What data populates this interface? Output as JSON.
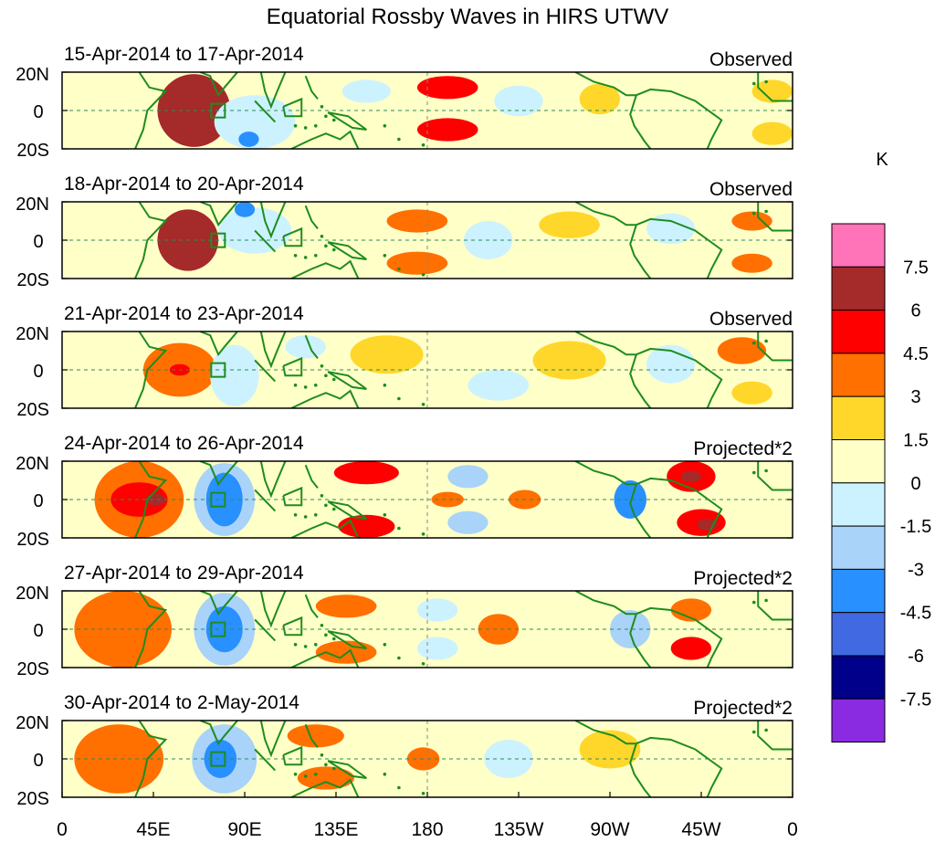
{
  "chart_data": {
    "type": "heatmap",
    "title": "Equatorial Rossby Waves in HIRS UTWV",
    "units": "K",
    "x_tick_labels": [
      "0",
      "45E",
      "90E",
      "135E",
      "180",
      "135W",
      "90W",
      "45W",
      "0"
    ],
    "y_tick_labels": [
      "20N",
      "0",
      "20S"
    ],
    "x_range": [
      0,
      360
    ],
    "y_range": [
      -20,
      20
    ],
    "colorbar": {
      "labels": [
        "7.5",
        "6",
        "4.5",
        "3",
        "1.5",
        "0",
        "-1.5",
        "-3",
        "-4.5",
        "-6",
        "-7.5"
      ],
      "colors": [
        "#ff73b9",
        "#a52a2a",
        "#ff0000",
        "#ff7000",
        "#ffd72a",
        "#ffffc8",
        "#ccf2ff",
        "#a9d3f8",
        "#2890ff",
        "#4169e1",
        "#00008b",
        "#8a2be2"
      ]
    },
    "panels": [
      {
        "date_range": "15-Apr-2014 to 17-Apr-2014",
        "label": "Observed",
        "blobs": [
          {
            "lon": 65,
            "lat": 0,
            "rx": 18,
            "ry": 19,
            "level": 4
          },
          {
            "lon": 190,
            "lat": 12,
            "rx": 15,
            "ry": 6,
            "level": 3
          },
          {
            "lon": 190,
            "lat": -10,
            "rx": 15,
            "ry": 6,
            "level": 3
          },
          {
            "lon": 265,
            "lat": 6,
            "rx": 10,
            "ry": 8,
            "level": 1
          },
          {
            "lon": 350,
            "lat": 10,
            "rx": 10,
            "ry": 6,
            "level": 1
          },
          {
            "lon": 350,
            "lat": -12,
            "rx": 10,
            "ry": 6,
            "level": 1
          },
          {
            "lon": 95,
            "lat": -6,
            "rx": 20,
            "ry": 14,
            "level": -1
          },
          {
            "lon": 92,
            "lat": -15,
            "rx": 5,
            "ry": 4,
            "level": -3
          },
          {
            "lon": 150,
            "lat": 10,
            "rx": 12,
            "ry": 6,
            "level": -1
          },
          {
            "lon": 225,
            "lat": 5,
            "rx": 12,
            "ry": 8,
            "level": -1
          }
        ]
      },
      {
        "date_range": "18-Apr-2014 to 20-Apr-2014",
        "label": "Observed",
        "blobs": [
          {
            "lon": 62,
            "lat": 0,
            "rx": 15,
            "ry": 16,
            "level": 4
          },
          {
            "lon": 175,
            "lat": 10,
            "rx": 15,
            "ry": 6,
            "level": 2
          },
          {
            "lon": 175,
            "lat": -12,
            "rx": 15,
            "ry": 6,
            "level": 2
          },
          {
            "lon": 250,
            "lat": 8,
            "rx": 15,
            "ry": 7,
            "level": 1
          },
          {
            "lon": 340,
            "lat": 10,
            "rx": 10,
            "ry": 5,
            "level": 2
          },
          {
            "lon": 340,
            "lat": -12,
            "rx": 10,
            "ry": 5,
            "level": 2
          },
          {
            "lon": 95,
            "lat": 5,
            "rx": 18,
            "ry": 12,
            "level": -1
          },
          {
            "lon": 90,
            "lat": 16,
            "rx": 5,
            "ry": 4,
            "level": -3
          },
          {
            "lon": 210,
            "lat": 0,
            "rx": 12,
            "ry": 10,
            "level": -1
          },
          {
            "lon": 300,
            "lat": 6,
            "rx": 12,
            "ry": 8,
            "level": -1
          }
        ]
      },
      {
        "date_range": "21-Apr-2014 to 23-Apr-2014",
        "label": "Observed",
        "blobs": [
          {
            "lon": 58,
            "lat": 0,
            "rx": 18,
            "ry": 14,
            "level": 2
          },
          {
            "lon": 58,
            "lat": 0,
            "rx": 5,
            "ry": 3,
            "level": 3
          },
          {
            "lon": 160,
            "lat": 8,
            "rx": 18,
            "ry": 10,
            "level": 1
          },
          {
            "lon": 250,
            "lat": 5,
            "rx": 18,
            "ry": 10,
            "level": 1
          },
          {
            "lon": 335,
            "lat": 10,
            "rx": 12,
            "ry": 7,
            "level": 2
          },
          {
            "lon": 340,
            "lat": -12,
            "rx": 10,
            "ry": 6,
            "level": 1
          },
          {
            "lon": 85,
            "lat": -3,
            "rx": 12,
            "ry": 16,
            "level": -1
          },
          {
            "lon": 120,
            "lat": 12,
            "rx": 10,
            "ry": 6,
            "level": -1
          },
          {
            "lon": 215,
            "lat": -8,
            "rx": 15,
            "ry": 8,
            "level": -1
          },
          {
            "lon": 300,
            "lat": 3,
            "rx": 12,
            "ry": 10,
            "level": -1
          }
        ]
      },
      {
        "date_range": "24-Apr-2014 to 26-Apr-2014",
        "label": "Projected*2",
        "blobs": [
          {
            "lon": 38,
            "lat": 0,
            "rx": 22,
            "ry": 20,
            "level": 2
          },
          {
            "lon": 38,
            "lat": 0,
            "rx": 14,
            "ry": 9,
            "level": 3
          },
          {
            "lon": 46,
            "lat": 0,
            "rx": 5,
            "ry": 3,
            "level": 4
          },
          {
            "lon": 150,
            "lat": 14,
            "rx": 16,
            "ry": 6,
            "level": 3
          },
          {
            "lon": 150,
            "lat": -14,
            "rx": 14,
            "ry": 6,
            "level": 3
          },
          {
            "lon": 190,
            "lat": 0,
            "rx": 8,
            "ry": 4,
            "level": 2
          },
          {
            "lon": 228,
            "lat": 0,
            "rx": 8,
            "ry": 5,
            "level": 2
          },
          {
            "lon": 310,
            "lat": 12,
            "rx": 12,
            "ry": 8,
            "level": 3
          },
          {
            "lon": 315,
            "lat": -12,
            "rx": 12,
            "ry": 7,
            "level": 3
          },
          {
            "lon": 310,
            "lat": 12,
            "rx": 5,
            "ry": 3,
            "level": 4
          },
          {
            "lon": 318,
            "lat": -13,
            "rx": 5,
            "ry": 3,
            "level": 4
          },
          {
            "lon": 80,
            "lat": 0,
            "rx": 15,
            "ry": 19,
            "level": -2
          },
          {
            "lon": 80,
            "lat": 0,
            "rx": 9,
            "ry": 14,
            "level": -3
          },
          {
            "lon": 200,
            "lat": 12,
            "rx": 10,
            "ry": 6,
            "level": -2
          },
          {
            "lon": 200,
            "lat": -12,
            "rx": 10,
            "ry": 6,
            "level": -2
          },
          {
            "lon": 280,
            "lat": 0,
            "rx": 8,
            "ry": 10,
            "level": -3
          }
        ]
      },
      {
        "date_range": "27-Apr-2014 to 29-Apr-2014",
        "label": "Projected*2",
        "blobs": [
          {
            "lon": 30,
            "lat": 0,
            "rx": 24,
            "ry": 20,
            "level": 2
          },
          {
            "lon": 140,
            "lat": 12,
            "rx": 15,
            "ry": 6,
            "level": 2
          },
          {
            "lon": 140,
            "lat": -12,
            "rx": 15,
            "ry": 6,
            "level": 2
          },
          {
            "lon": 215,
            "lat": 0,
            "rx": 10,
            "ry": 8,
            "level": 2
          },
          {
            "lon": 310,
            "lat": 10,
            "rx": 10,
            "ry": 6,
            "level": 2
          },
          {
            "lon": 310,
            "lat": -10,
            "rx": 10,
            "ry": 6,
            "level": 3
          },
          {
            "lon": 80,
            "lat": 0,
            "rx": 15,
            "ry": 19,
            "level": -2
          },
          {
            "lon": 80,
            "lat": 0,
            "rx": 9,
            "ry": 12,
            "level": -3
          },
          {
            "lon": 185,
            "lat": 10,
            "rx": 10,
            "ry": 6,
            "level": -1
          },
          {
            "lon": 185,
            "lat": -10,
            "rx": 10,
            "ry": 6,
            "level": -1
          },
          {
            "lon": 280,
            "lat": 0,
            "rx": 10,
            "ry": 10,
            "level": -2
          }
        ]
      },
      {
        "date_range": "30-Apr-2014 to 2-May-2014",
        "label": "Projected*2",
        "blobs": [
          {
            "lon": 28,
            "lat": 0,
            "rx": 22,
            "ry": 18,
            "level": 2
          },
          {
            "lon": 125,
            "lat": 12,
            "rx": 14,
            "ry": 6,
            "level": 2
          },
          {
            "lon": 130,
            "lat": -10,
            "rx": 14,
            "ry": 6,
            "level": 2
          },
          {
            "lon": 178,
            "lat": 0,
            "rx": 8,
            "ry": 6,
            "level": 2
          },
          {
            "lon": 270,
            "lat": 5,
            "rx": 15,
            "ry": 10,
            "level": 1
          },
          {
            "lon": 80,
            "lat": 0,
            "rx": 16,
            "ry": 18,
            "level": -2
          },
          {
            "lon": 78,
            "lat": 0,
            "rx": 8,
            "ry": 10,
            "level": -3
          },
          {
            "lon": 220,
            "lat": 0,
            "rx": 12,
            "ry": 10,
            "level": -1
          }
        ]
      }
    ]
  }
}
